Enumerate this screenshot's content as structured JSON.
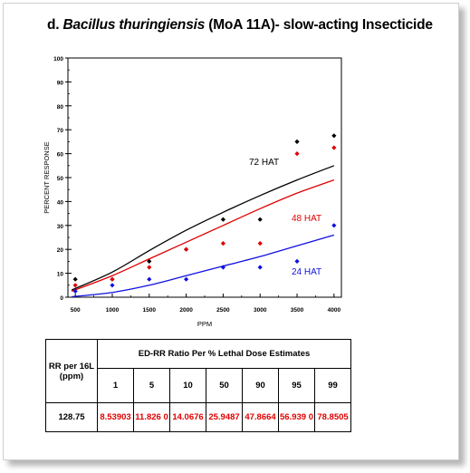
{
  "title": {
    "prefix": "d. ",
    "species": "Bacillus thuringiensis",
    "suffix": " (MoA 11A)- slow-acting Insecticide"
  },
  "chart_data": {
    "type": "scatter",
    "xlabel": "PPM",
    "ylabel": "PERCENT  RESPONSE",
    "xlim": [
      400,
      4100
    ],
    "ylim": [
      0,
      100
    ],
    "x_ticks": [
      500,
      1000,
      1500,
      2000,
      2500,
      3000,
      3500,
      4000
    ],
    "y_ticks": [
      0,
      10,
      20,
      30,
      40,
      50,
      60,
      70,
      80,
      90,
      100
    ],
    "grid": false,
    "series": [
      {
        "name": "72 HAT",
        "color": "#000000",
        "points": [
          [
            500,
            7.5
          ],
          [
            1000,
            7.5
          ],
          [
            1500,
            15
          ],
          [
            2000,
            20
          ],
          [
            2500,
            32.5
          ],
          [
            3000,
            32.5
          ],
          [
            3500,
            65
          ],
          [
            4000,
            67.5
          ]
        ],
        "fit": [
          [
            450,
            3.0
          ],
          [
            1000,
            10.5
          ],
          [
            1500,
            19.5
          ],
          [
            2000,
            28.0
          ],
          [
            2500,
            35.5
          ],
          [
            3000,
            42.5
          ],
          [
            3500,
            49.0
          ],
          [
            4000,
            55.0
          ]
        ]
      },
      {
        "name": "48 HAT",
        "color": "#e00000",
        "points": [
          [
            500,
            5
          ],
          [
            1000,
            7.5
          ],
          [
            1500,
            12.5
          ],
          [
            2000,
            20
          ],
          [
            2500,
            22.5
          ],
          [
            3000,
            22.5
          ],
          [
            3500,
            60
          ],
          [
            4000,
            62.5
          ]
        ],
        "fit": [
          [
            450,
            2.5
          ],
          [
            1000,
            9.0
          ],
          [
            1500,
            16.0
          ],
          [
            2000,
            23.0
          ],
          [
            2500,
            30.0
          ],
          [
            3000,
            37.0
          ],
          [
            3500,
            43.5
          ],
          [
            4000,
            49.0
          ]
        ]
      },
      {
        "name": "24 HAT",
        "color": "#1010e0",
        "points": [
          [
            500,
            2.5
          ],
          [
            1000,
            5
          ],
          [
            1500,
            7.5
          ],
          [
            2000,
            7.5
          ],
          [
            2500,
            12.5
          ],
          [
            3000,
            12.5
          ],
          [
            3500,
            15
          ],
          [
            4000,
            30
          ]
        ],
        "fit": [
          [
            450,
            0.2
          ],
          [
            1000,
            2.0
          ],
          [
            1500,
            5.0
          ],
          [
            2000,
            9.0
          ],
          [
            2500,
            13.0
          ],
          [
            3000,
            17.0
          ],
          [
            3500,
            21.5
          ],
          [
            4000,
            26.0
          ]
        ]
      }
    ]
  },
  "table": {
    "rr_header": "RR per 16L (ppm)",
    "ed_header": "ED-RR  Ratio Per % Lethal Dose Estimates",
    "percent_columns": [
      "1",
      "5",
      "10",
      "50",
      "90",
      "95",
      "99"
    ],
    "rr_value": "128.75",
    "ed_values": [
      "8.53903",
      "11.826 0",
      "14.0676",
      "25.9487",
      "47.8664",
      "56.939 0",
      "78.8505"
    ]
  }
}
